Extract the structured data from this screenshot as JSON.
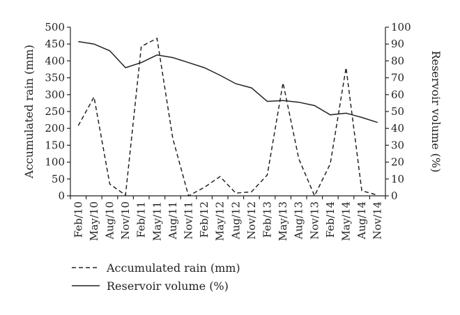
{
  "chart_data": {
    "type": "line",
    "categories": [
      "Feb/10",
      "May/10",
      "Aug/10",
      "Nov/10",
      "Feb/11",
      "May/11",
      "Aug/11",
      "Nov/11",
      "Feb/12",
      "May/12",
      "Aug/12",
      "Nov/12",
      "Feb/13",
      "May/13",
      "Aug/13",
      "Nov/13",
      "Feb/14",
      "May/14",
      "Aug/14",
      "Nov/14"
    ],
    "series": [
      {
        "name": "Accumulated rain (mm)",
        "axis": "left",
        "style": "dashed",
        "values": [
          208,
          293,
          35,
          2,
          443,
          467,
          170,
          0,
          25,
          57,
          8,
          12,
          62,
          335,
          110,
          0,
          95,
          380,
          15,
          2
        ]
      },
      {
        "name": "Reservoir volume (%)",
        "axis": "right",
        "style": "solid",
        "values": [
          91.5,
          90,
          86,
          76,
          79,
          83.5,
          82,
          79,
          76,
          71.5,
          66.5,
          64,
          56,
          56.5,
          55.5,
          53.5,
          48,
          49,
          46.5,
          43.5
        ]
      }
    ],
    "ylabel": "Accumulated rain (mm)",
    "y2label": "Reservoir volume (%)",
    "ylim": [
      0,
      500
    ],
    "y2lim": [
      0,
      100
    ],
    "yticks": [
      0,
      50,
      100,
      150,
      200,
      250,
      300,
      350,
      400,
      450,
      500
    ],
    "y2ticks": [
      0,
      10,
      20,
      30,
      40,
      50,
      60,
      70,
      80,
      90,
      100
    ],
    "grid": false,
    "legend_position": "bottom-left"
  }
}
